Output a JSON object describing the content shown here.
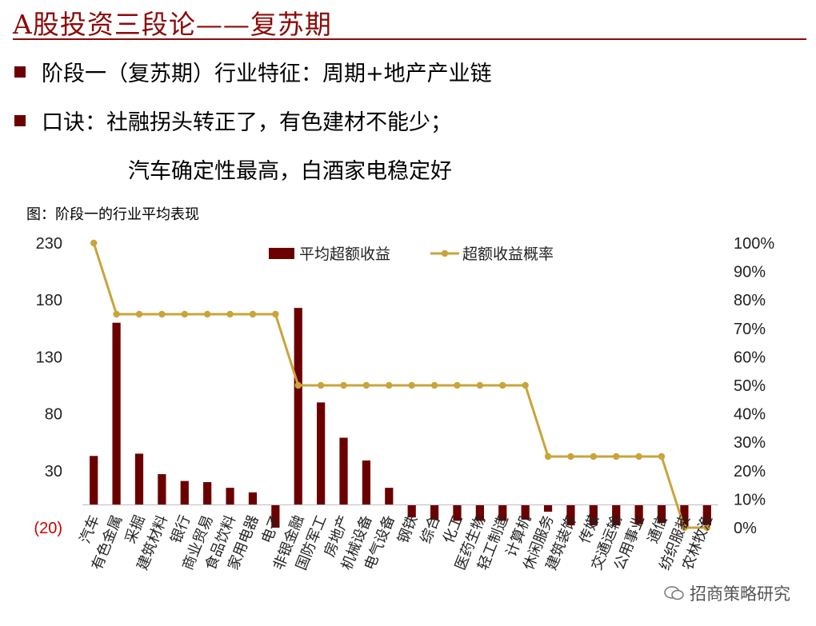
{
  "header": {
    "title": "A股投资三段论——复苏期"
  },
  "bullets": [
    {
      "text": "阶段一（复苏期）行业特征：周期+地产产业链"
    },
    {
      "text": "口诀：社融拐头转正了，有色建材不能少；"
    }
  ],
  "bullet_continuation": "汽车确定性最高，白酒家电稳定好",
  "figure_label": "图：阶段一的行业平均表现",
  "watermark": "招商策略研究",
  "colors": {
    "accent": "#8b0a0a",
    "bar": "#6b0000",
    "line": "#c9a43a",
    "negative_tick": "#cc0000"
  },
  "chart_data": {
    "type": "bar",
    "categories": [
      "汽车",
      "有色金属",
      "采掘",
      "建筑材料",
      "银行",
      "商业贸易",
      "食品饮料",
      "家用电器",
      "电子",
      "非银金融",
      "国防军工",
      "房地产",
      "机械设备",
      "电气设备",
      "钢铁",
      "综合",
      "化工",
      "医药生物",
      "轻工制造",
      "计算机",
      "休闲服务",
      "建筑装饰",
      "传媒",
      "交通运输",
      "公用事业",
      "通信",
      "纺织服装",
      "农林牧渔"
    ],
    "series": [
      {
        "name": "平均超额收益",
        "type": "bar",
        "axis": "left",
        "values": [
          43,
          160,
          45,
          27,
          21,
          20,
          15,
          11,
          -20,
          173,
          90,
          59,
          39,
          15,
          -11,
          -13,
          -14,
          -14,
          -14,
          -13,
          -6,
          -18,
          -18,
          -18,
          -17,
          -16,
          -19,
          -18
        ]
      },
      {
        "name": "超额收益概率",
        "type": "line",
        "axis": "right",
        "values": [
          1.0,
          0.75,
          0.75,
          0.75,
          0.75,
          0.75,
          0.75,
          0.75,
          0.75,
          0.5,
          0.5,
          0.5,
          0.5,
          0.5,
          0.5,
          0.5,
          0.5,
          0.5,
          0.5,
          0.5,
          0.25,
          0.25,
          0.25,
          0.25,
          0.25,
          0.25,
          0.0,
          0.0
        ]
      }
    ],
    "ylim": [
      -20,
      230
    ],
    "yticks": [
      "(20)",
      "30",
      "80",
      "130",
      "180",
      "230"
    ],
    "yticks_values": [
      -20,
      30,
      80,
      130,
      180,
      230
    ],
    "y2lim": [
      0,
      1.0
    ],
    "y2ticks": [
      "0%",
      "10%",
      "20%",
      "30%",
      "40%",
      "50%",
      "60%",
      "70%",
      "80%",
      "90%",
      "100%"
    ],
    "legend": "top-center",
    "grid": false,
    "xlabel": "",
    "ylabel": "",
    "y2label": ""
  }
}
